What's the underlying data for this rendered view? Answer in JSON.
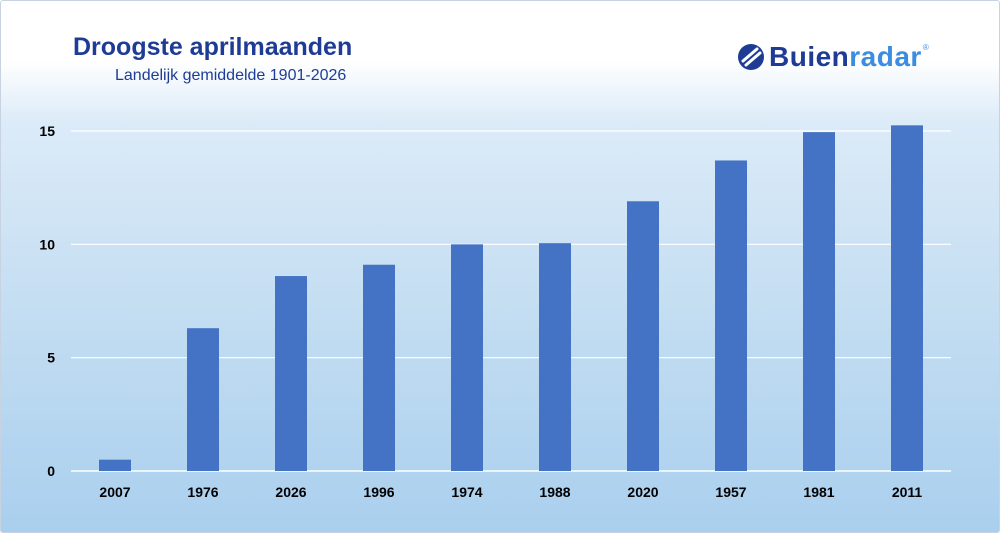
{
  "header": {
    "title": "Droogste aprilmaanden",
    "subtitle": "Landelijk gemiddelde 1901-2026"
  },
  "logo": {
    "part1": "Buien",
    "part2": "radar",
    "reg": "®",
    "icon": "buienradar-logo-icon"
  },
  "colors": {
    "bar": "#4472c4",
    "title": "#1e3c96",
    "grid": "#ffffff",
    "logo_accent": "#3a8de0"
  },
  "chart_data": {
    "type": "bar",
    "title": "Droogste aprilmaanden",
    "subtitle": "Landelijk gemiddelde 1901-2026",
    "categories": [
      "2007",
      "1976",
      "2026",
      "1996",
      "1974",
      "1988",
      "2020",
      "1957",
      "1981",
      "2011"
    ],
    "values": [
      0.5,
      6.3,
      8.6,
      9.1,
      10.0,
      10.05,
      11.9,
      13.7,
      14.95,
      15.25
    ],
    "ylim": [
      0,
      15
    ],
    "yticks": [
      0,
      5,
      10,
      15
    ],
    "xlabel": "",
    "ylabel": "",
    "grid": true,
    "legend": "none"
  }
}
